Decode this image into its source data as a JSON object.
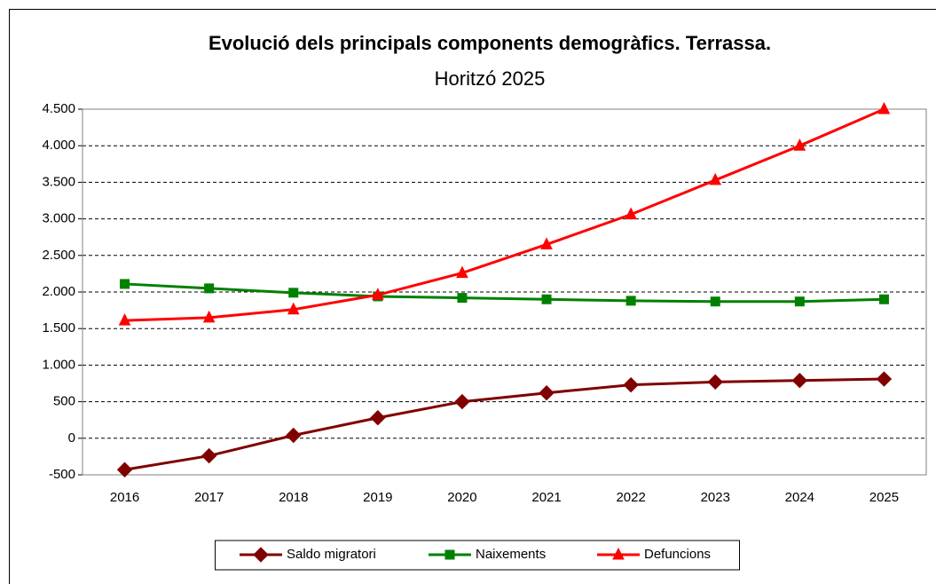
{
  "chart_data": {
    "type": "line",
    "title": "Evolució dels principals components demogràfics. Terrassa.",
    "subtitle": "Horitzó 2025",
    "categories": [
      "2016",
      "2017",
      "2018",
      "2019",
      "2020",
      "2021",
      "2022",
      "2023",
      "2024",
      "2025"
    ],
    "series": [
      {
        "name": "Saldo migratori",
        "color": "#800000",
        "values": [
          -430,
          -240,
          40,
          280,
          500,
          620,
          730,
          770,
          790,
          810
        ]
      },
      {
        "name": "Naixements",
        "color": "#008000",
        "values": [
          2110,
          2050,
          1990,
          1940,
          1920,
          1900,
          1880,
          1870,
          1870,
          1900
        ]
      },
      {
        "name": "Defuncions",
        "color": "#ff0000",
        "values": [
          1610,
          1650,
          1760,
          1960,
          2260,
          2650,
          3060,
          3530,
          4000,
          4500
        ]
      }
    ],
    "ylim": [
      -500,
      4500
    ],
    "yticks": [
      -500,
      0,
      500,
      {
        "value": 1000,
        "label": "1.000"
      },
      {
        "value": 1500,
        "label": "1.500"
      },
      {
        "value": 2000,
        "label": "2.000"
      },
      {
        "value": 2500,
        "label": "2.500"
      },
      {
        "value": 3000,
        "label": "3.000"
      },
      {
        "value": 3500,
        "label": "3.500"
      },
      {
        "value": 4000,
        "label": "4.000"
      },
      {
        "value": 4500,
        "label": "4.500"
      }
    ],
    "grid": true,
    "legend": "bottom"
  }
}
